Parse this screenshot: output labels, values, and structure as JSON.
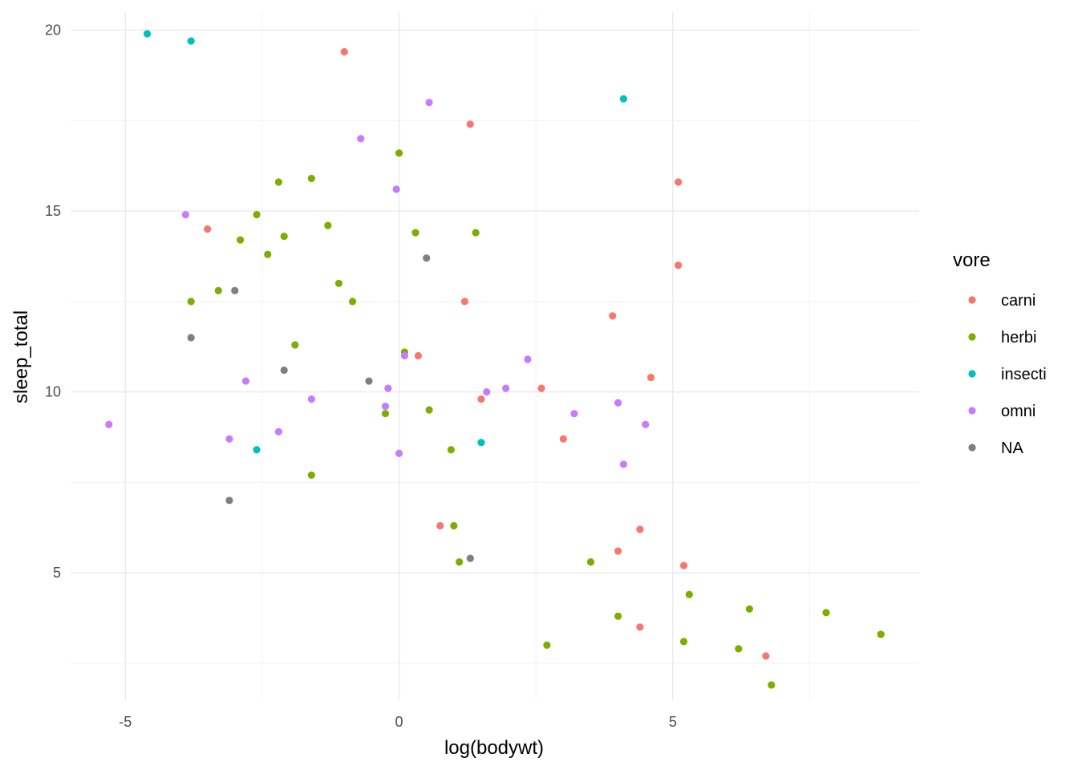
{
  "chart_data": {
    "type": "scatter",
    "title": "",
    "xlabel": "log(bodywt)",
    "ylabel": "sleep_total",
    "xlim": [
      -6,
      9.5
    ],
    "ylim": [
      1.5,
      20.5
    ],
    "x_ticks": [
      -5,
      0,
      5
    ],
    "x_tick_labels": [
      "-5",
      "0",
      "5"
    ],
    "x_minor": [
      -7.5,
      -2.5,
      2.5,
      7.5
    ],
    "y_ticks": [
      5,
      10,
      15,
      20
    ],
    "y_tick_labels": [
      "5",
      "10",
      "15",
      "20"
    ],
    "y_minor": [
      2.5,
      7.5,
      12.5,
      17.5
    ],
    "grid": true,
    "legend": {
      "title": "vore",
      "position": "right"
    },
    "series": [
      {
        "name": "carni",
        "color": "#F8766D",
        "points": [
          [
            -1.0,
            19.4
          ],
          [
            1.3,
            17.4
          ],
          [
            5.1,
            15.8
          ],
          [
            -3.5,
            14.5
          ],
          [
            5.1,
            13.5
          ],
          [
            1.2,
            12.5
          ],
          [
            3.9,
            12.1
          ],
          [
            0.35,
            11.0
          ],
          [
            4.6,
            10.4
          ],
          [
            2.6,
            10.1
          ],
          [
            1.5,
            9.8
          ],
          [
            3.0,
            8.7
          ],
          [
            0.75,
            6.3
          ],
          [
            4.4,
            6.2
          ],
          [
            4.0,
            5.6
          ],
          [
            5.2,
            5.2
          ],
          [
            4.4,
            3.5
          ],
          [
            6.7,
            2.7
          ]
        ]
      },
      {
        "name": "herbi",
        "color": "#7CAE00",
        "points": [
          [
            0.0,
            16.6
          ],
          [
            -1.6,
            15.9
          ],
          [
            -2.2,
            15.8
          ],
          [
            -2.6,
            14.9
          ],
          [
            -1.3,
            14.6
          ],
          [
            0.3,
            14.4
          ],
          [
            1.4,
            14.4
          ],
          [
            -2.1,
            14.3
          ],
          [
            -2.9,
            14.2
          ],
          [
            -2.4,
            13.8
          ],
          [
            -1.1,
            13.0
          ],
          [
            -3.3,
            12.8
          ],
          [
            -3.8,
            12.5
          ],
          [
            -0.85,
            12.5
          ],
          [
            0.1,
            11.1
          ],
          [
            -1.9,
            11.3
          ],
          [
            0.55,
            9.5
          ],
          [
            -0.25,
            9.4
          ],
          [
            0.95,
            8.4
          ],
          [
            -1.6,
            7.7
          ],
          [
            1.0,
            6.3
          ],
          [
            1.1,
            5.3
          ],
          [
            3.5,
            5.3
          ],
          [
            5.3,
            4.4
          ],
          [
            6.4,
            4.0
          ],
          [
            7.8,
            3.9
          ],
          [
            4.0,
            3.8
          ],
          [
            8.8,
            3.3
          ],
          [
            5.2,
            3.1
          ],
          [
            2.7,
            3.0
          ],
          [
            6.2,
            2.9
          ],
          [
            6.8,
            1.9
          ]
        ]
      },
      {
        "name": "insecti",
        "color": "#00BFC4",
        "points": [
          [
            -4.6,
            19.9
          ],
          [
            -3.8,
            19.7
          ],
          [
            4.1,
            18.1
          ],
          [
            -2.6,
            8.4
          ],
          [
            1.5,
            8.6
          ]
        ]
      },
      {
        "name": "omni",
        "color": "#C77CFF",
        "points": [
          [
            0.55,
            18.0
          ],
          [
            -0.7,
            17.0
          ],
          [
            -0.05,
            15.6
          ],
          [
            -3.9,
            14.9
          ],
          [
            0.1,
            11.0
          ],
          [
            2.35,
            10.9
          ],
          [
            -2.8,
            10.3
          ],
          [
            -0.2,
            10.1
          ],
          [
            1.95,
            10.1
          ],
          [
            1.6,
            10.0
          ],
          [
            -1.6,
            9.8
          ],
          [
            4.0,
            9.7
          ],
          [
            -0.25,
            9.6
          ],
          [
            3.2,
            9.4
          ],
          [
            -5.3,
            9.1
          ],
          [
            4.5,
            9.1
          ],
          [
            -2.2,
            8.9
          ],
          [
            -3.1,
            8.7
          ],
          [
            0.0,
            8.3
          ],
          [
            4.1,
            8.0
          ]
        ]
      },
      {
        "name": "NA",
        "color": "#7F7F7F",
        "points": [
          [
            0.5,
            13.7
          ],
          [
            -3.0,
            12.8
          ],
          [
            -3.8,
            11.5
          ],
          [
            -2.1,
            10.6
          ],
          [
            -0.55,
            10.3
          ],
          [
            -3.1,
            7.0
          ],
          [
            1.3,
            5.4
          ]
        ]
      }
    ]
  }
}
